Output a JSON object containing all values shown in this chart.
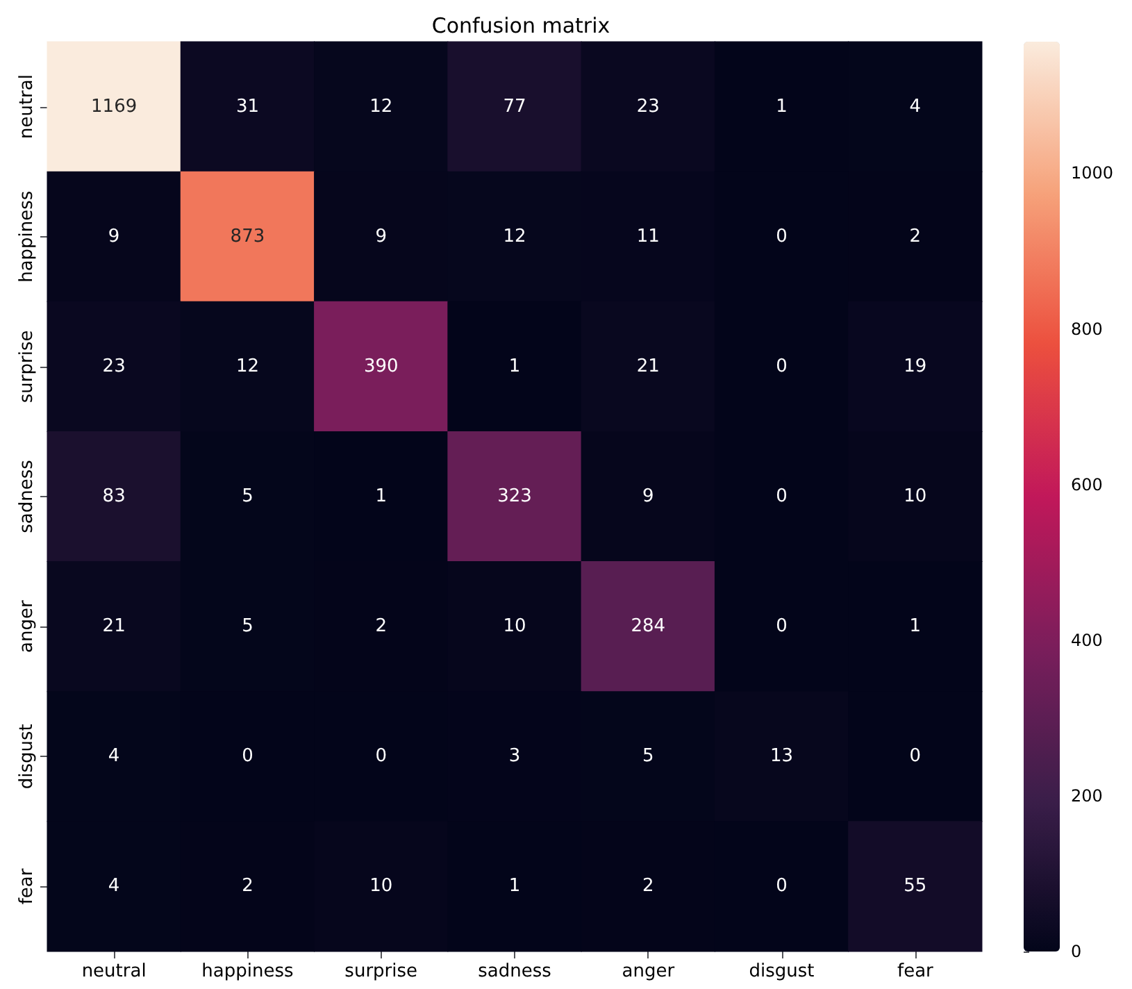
{
  "chart_data": {
    "type": "heatmap",
    "title": "Confusion matrix",
    "categories": [
      "neutral",
      "happiness",
      "surprise",
      "sadness",
      "anger",
      "disgust",
      "fear"
    ],
    "y_categories": [
      "neutral",
      "happiness",
      "surprise",
      "sadness",
      "anger",
      "disgust",
      "fear"
    ],
    "cells": [
      [
        1169,
        31,
        12,
        77,
        23,
        1,
        4
      ],
      [
        9,
        873,
        9,
        12,
        11,
        0,
        2
      ],
      [
        23,
        12,
        390,
        1,
        21,
        0,
        19
      ],
      [
        83,
        5,
        1,
        323,
        9,
        0,
        10
      ],
      [
        21,
        5,
        2,
        10,
        284,
        0,
        1
      ],
      [
        4,
        0,
        0,
        3,
        5,
        13,
        0
      ],
      [
        4,
        2,
        10,
        1,
        2,
        0,
        55
      ]
    ],
    "clim": [
      0,
      1169
    ],
    "cticks": [
      0,
      200,
      400,
      600,
      800,
      1000
    ],
    "data_labels": true
  }
}
